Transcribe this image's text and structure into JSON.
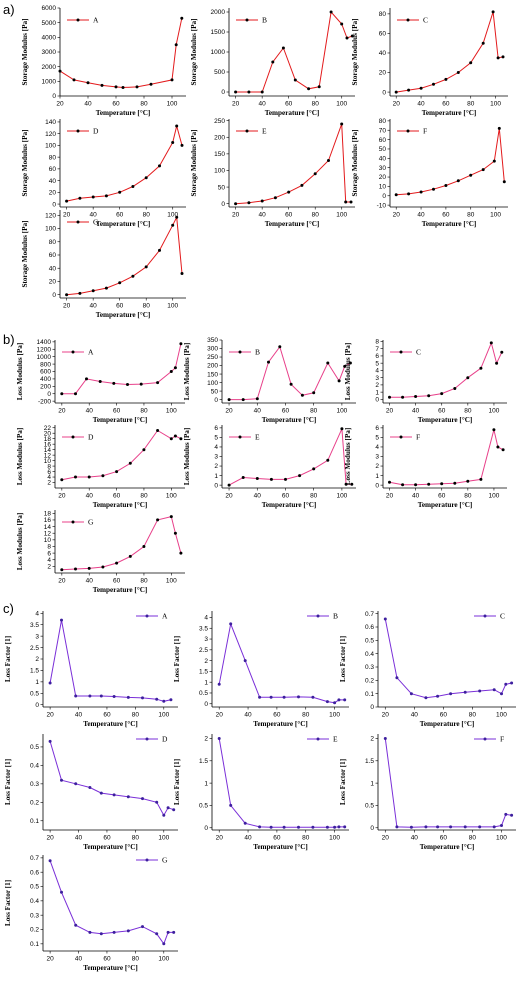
{
  "sections": [
    {
      "label": "a)",
      "ylabel": "Storage Modulus [Pa]",
      "xlabel": "Temperature [°C]"
    },
    {
      "label": "b)",
      "ylabel": "Loss Modulus [Pa]",
      "xlabel": "Temperature [°C]"
    },
    {
      "label": "c)",
      "ylabel": "Loss Factor [1]",
      "xlabel": "Temperature [°C]"
    }
  ],
  "colors": {
    "a": "#e31a1c",
    "b": "#e8408a",
    "c": "#7a2fd8",
    "marker": "#000000",
    "marker_c": "#3d1f9e"
  },
  "chart_data": [
    {
      "type": "line",
      "section": "a",
      "series": [
        {
          "name": "A"
        }
      ],
      "xlim": [
        20,
        110
      ],
      "ylim": [
        0,
        6000
      ],
      "yticks": [
        0,
        1000,
        2000,
        3000,
        4000,
        5000,
        6000
      ],
      "xticks": [
        20,
        40,
        60,
        80,
        100
      ],
      "x": [
        20,
        30,
        40,
        50,
        60,
        65,
        75,
        85,
        100,
        103,
        107
      ],
      "values": [
        1700,
        1100,
        900,
        720,
        620,
        580,
        620,
        800,
        1100,
        3500,
        5300
      ]
    },
    {
      "type": "line",
      "section": "a",
      "series": [
        {
          "name": "B"
        }
      ],
      "xlim": [
        15,
        110
      ],
      "ylim": [
        -100,
        2100
      ],
      "yticks": [
        0,
        500,
        1000,
        1500,
        2000
      ],
      "xticks": [
        20,
        40,
        60,
        80,
        100
      ],
      "x": [
        20,
        30,
        40,
        48,
        56,
        65,
        75,
        83,
        92,
        100,
        104,
        108
      ],
      "values": [
        0,
        0,
        0,
        750,
        1100,
        300,
        80,
        130,
        2000,
        1700,
        1350,
        1400
      ]
    },
    {
      "type": "line",
      "section": "a",
      "series": [
        {
          "name": "C"
        }
      ],
      "xlim": [
        15,
        110
      ],
      "ylim": [
        -4,
        86
      ],
      "yticks": [
        0,
        20,
        40,
        60,
        80
      ],
      "xticks": [
        20,
        40,
        60,
        80,
        100
      ],
      "x": [
        20,
        30,
        40,
        50,
        60,
        70,
        80,
        90,
        98,
        102,
        106
      ],
      "values": [
        0,
        2,
        4,
        8,
        13,
        20,
        30,
        50,
        82,
        35,
        36
      ]
    },
    {
      "type": "line",
      "section": "a",
      "series": [
        {
          "name": "D"
        }
      ],
      "xlim": [
        15,
        110
      ],
      "ylim": [
        -5,
        145
      ],
      "yticks": [
        0,
        20,
        40,
        60,
        80,
        100,
        120,
        140
      ],
      "xticks": [
        20,
        40,
        60,
        80,
        100
      ],
      "x": [
        20,
        30,
        40,
        50,
        60,
        70,
        80,
        90,
        100,
        103,
        107
      ],
      "values": [
        5,
        10,
        12,
        14,
        20,
        30,
        45,
        65,
        105,
        133,
        100
      ]
    },
    {
      "type": "line",
      "section": "a",
      "series": [
        {
          "name": "E"
        }
      ],
      "xlim": [
        15,
        110
      ],
      "ylim": [
        -10,
        255
      ],
      "yticks": [
        0,
        50,
        100,
        150,
        200,
        250
      ],
      "xticks": [
        20,
        40,
        60,
        80,
        100
      ],
      "x": [
        20,
        30,
        40,
        50,
        60,
        70,
        80,
        90,
        100,
        103,
        107
      ],
      "values": [
        0,
        3,
        8,
        18,
        35,
        55,
        90,
        130,
        240,
        5,
        5
      ]
    },
    {
      "type": "line",
      "section": "a",
      "series": [
        {
          "name": "F"
        }
      ],
      "xlim": [
        15,
        110
      ],
      "ylim": [
        -12,
        82
      ],
      "yticks": [
        -10,
        0,
        10,
        20,
        30,
        40,
        50,
        60,
        70,
        80
      ],
      "xticks": [
        20,
        40,
        60,
        80,
        100
      ],
      "x": [
        20,
        30,
        40,
        50,
        60,
        70,
        80,
        90,
        99,
        103,
        107
      ],
      "values": [
        1,
        2,
        4,
        7,
        11,
        16,
        22,
        28,
        37,
        72,
        15
      ]
    },
    {
      "type": "line",
      "section": "a",
      "series": [
        {
          "name": "G"
        }
      ],
      "xlim": [
        15,
        110
      ],
      "ylim": [
        -5,
        128
      ],
      "yticks": [
        0,
        20,
        40,
        60,
        80,
        100,
        120
      ],
      "xticks": [
        20,
        40,
        60,
        80,
        100
      ],
      "x": [
        20,
        30,
        40,
        50,
        60,
        70,
        80,
        90,
        100,
        103,
        107
      ],
      "values": [
        0,
        2,
        6,
        10,
        18,
        28,
        42,
        67,
        105,
        117,
        32
      ]
    },
    {
      "type": "line",
      "section": "b",
      "series": [
        {
          "name": "A"
        }
      ],
      "xlim": [
        15,
        110
      ],
      "ylim": [
        -250,
        1450
      ],
      "yticks": [
        -200,
        0,
        200,
        400,
        600,
        800,
        1000,
        1200,
        1400
      ],
      "xticks": [
        20,
        40,
        60,
        80,
        100
      ],
      "x": [
        20,
        30,
        38,
        48,
        58,
        68,
        78,
        90,
        100,
        103,
        107
      ],
      "values": [
        0,
        0,
        400,
        330,
        280,
        250,
        260,
        300,
        600,
        700,
        1350
      ]
    },
    {
      "type": "line",
      "section": "b",
      "series": [
        {
          "name": "B"
        }
      ],
      "xlim": [
        15,
        110
      ],
      "ylim": [
        -20,
        350
      ],
      "yticks": [
        0,
        50,
        100,
        150,
        200,
        250,
        300,
        350
      ],
      "xticks": [
        20,
        40,
        60,
        80,
        100
      ],
      "x": [
        20,
        30,
        40,
        48,
        56,
        64,
        72,
        80,
        90,
        98,
        102,
        106
      ],
      "values": [
        0,
        0,
        5,
        220,
        310,
        90,
        25,
        40,
        215,
        110,
        195,
        215
      ]
    },
    {
      "type": "line",
      "section": "b",
      "series": [
        {
          "name": "C"
        }
      ],
      "xlim": [
        15,
        110
      ],
      "ylim": [
        -0.5,
        8.2
      ],
      "yticks": [
        0,
        1,
        2,
        3,
        4,
        5,
        6,
        7,
        8
      ],
      "xticks": [
        20,
        40,
        60,
        80,
        100
      ],
      "x": [
        20,
        30,
        40,
        50,
        60,
        70,
        80,
        90,
        98,
        102,
        106
      ],
      "values": [
        0.3,
        0.3,
        0.4,
        0.5,
        0.8,
        1.5,
        3,
        4.3,
        7.8,
        5,
        6.5
      ]
    },
    {
      "type": "line",
      "section": "b",
      "series": [
        {
          "name": "D"
        }
      ],
      "xlim": [
        15,
        110
      ],
      "ylim": [
        0,
        23
      ],
      "yticks": [
        2,
        4,
        6,
        8,
        10,
        12,
        14,
        16,
        18,
        20,
        22
      ],
      "xticks": [
        20,
        40,
        60,
        80,
        100
      ],
      "x": [
        20,
        30,
        40,
        50,
        60,
        70,
        80,
        90,
        100,
        103,
        107
      ],
      "values": [
        3,
        4,
        4,
        4.5,
        6,
        9,
        14,
        21,
        18,
        19,
        18
      ]
    },
    {
      "type": "line",
      "section": "b",
      "series": [
        {
          "name": "E"
        }
      ],
      "xlim": [
        15,
        110
      ],
      "ylim": [
        -0.3,
        6.3
      ],
      "yticks": [
        0,
        1,
        2,
        3,
        4,
        5,
        6
      ],
      "xticks": [
        20,
        40,
        60,
        80,
        100
      ],
      "x": [
        20,
        30,
        40,
        50,
        60,
        70,
        80,
        90,
        100,
        103,
        107
      ],
      "values": [
        0,
        0.8,
        0.7,
        0.6,
        0.6,
        1,
        1.7,
        2.6,
        5.9,
        0.1,
        0.1
      ]
    },
    {
      "type": "line",
      "section": "b",
      "series": [
        {
          "name": "F"
        }
      ],
      "xlim": [
        15,
        110
      ],
      "ylim": [
        -0.3,
        6.3
      ],
      "yticks": [
        0,
        1,
        2,
        3,
        4,
        5,
        6
      ],
      "xticks": [
        20,
        40,
        60,
        80,
        100
      ],
      "x": [
        20,
        30,
        40,
        50,
        60,
        70,
        80,
        90,
        100,
        103,
        107
      ],
      "values": [
        0.3,
        0.05,
        0.05,
        0.1,
        0.15,
        0.2,
        0.4,
        0.6,
        5.8,
        4,
        3.7
      ]
    },
    {
      "type": "line",
      "section": "b",
      "series": [
        {
          "name": "G"
        }
      ],
      "xlim": [
        15,
        110
      ],
      "ylim": [
        0,
        19
      ],
      "yticks": [
        2,
        4,
        6,
        8,
        10,
        12,
        14,
        16,
        18
      ],
      "xticks": [
        20,
        40,
        60,
        80,
        100
      ],
      "x": [
        20,
        30,
        40,
        50,
        60,
        70,
        80,
        90,
        100,
        103,
        107
      ],
      "values": [
        1,
        1.2,
        1.4,
        1.8,
        3,
        5,
        8,
        16,
        17,
        12,
        6
      ]
    },
    {
      "type": "line",
      "section": "c",
      "series": [
        {
          "name": "A"
        }
      ],
      "xlim": [
        15,
        110
      ],
      "ylim": [
        -0.1,
        4.1
      ],
      "yticks": [
        0,
        0.5,
        1,
        1.5,
        2,
        2.5,
        3,
        3.5,
        4
      ],
      "xticks": [
        20,
        40,
        60,
        80,
        100
      ],
      "x": [
        20,
        28,
        38,
        48,
        56,
        65,
        75,
        85,
        95,
        100,
        105
      ],
      "values": [
        0.95,
        3.7,
        0.38,
        0.38,
        0.38,
        0.36,
        0.32,
        0.3,
        0.24,
        0.15,
        0.22
      ]
    },
    {
      "type": "line",
      "section": "c",
      "series": [
        {
          "name": "B"
        }
      ],
      "xlim": [
        15,
        110
      ],
      "ylim": [
        -0.15,
        4.3
      ],
      "yticks": [
        0,
        0.5,
        1,
        1.5,
        2,
        2.5,
        3,
        3.5,
        4
      ],
      "xticks": [
        20,
        40,
        60,
        80,
        100
      ],
      "x": [
        20,
        28,
        38,
        48,
        56,
        65,
        75,
        85,
        95,
        100,
        103,
        107
      ],
      "values": [
        0.9,
        3.7,
        2,
        0.3,
        0.3,
        0.3,
        0.32,
        0.3,
        0.1,
        0.05,
        0.18,
        0.18
      ]
    },
    {
      "type": "line",
      "section": "c",
      "series": [
        {
          "name": "C"
        }
      ],
      "xlim": [
        15,
        110
      ],
      "ylim": [
        0,
        0.72
      ],
      "yticks": [
        0,
        0.1,
        0.2,
        0.3,
        0.4,
        0.5,
        0.6,
        0.7
      ],
      "xticks": [
        20,
        40,
        60,
        80,
        100
      ],
      "x": [
        20,
        28,
        38,
        48,
        56,
        65,
        75,
        85,
        95,
        100,
        103,
        107
      ],
      "values": [
        0.66,
        0.22,
        0.1,
        0.07,
        0.08,
        0.1,
        0.11,
        0.12,
        0.13,
        0.1,
        0.17,
        0.18
      ]
    },
    {
      "type": "line",
      "section": "c",
      "series": [
        {
          "name": "D"
        }
      ],
      "xlim": [
        15,
        110
      ],
      "ylim": [
        0.05,
        0.57
      ],
      "yticks": [
        0.1,
        0.2,
        0.3,
        0.4,
        0.5
      ],
      "xticks": [
        20,
        40,
        60,
        80,
        100
      ],
      "x": [
        20,
        28,
        38,
        48,
        56,
        65,
        75,
        85,
        95,
        100,
        103,
        107
      ],
      "values": [
        0.53,
        0.32,
        0.3,
        0.28,
        0.25,
        0.24,
        0.23,
        0.22,
        0.2,
        0.13,
        0.17,
        0.16
      ]
    },
    {
      "type": "line",
      "section": "c",
      "series": [
        {
          "name": "E"
        }
      ],
      "xlim": [
        15,
        110
      ],
      "ylim": [
        -0.05,
        2.1
      ],
      "yticks": [
        0,
        0.5,
        1,
        1.5,
        2
      ],
      "xticks": [
        20,
        40,
        60,
        80,
        100
      ],
      "x": [
        20,
        28,
        38,
        48,
        56,
        65,
        75,
        85,
        95,
        100,
        103,
        107
      ],
      "values": [
        2,
        0.5,
        0.1,
        0.02,
        0.01,
        0.01,
        0.01,
        0.01,
        0.01,
        0.01,
        0.02,
        0.02
      ]
    },
    {
      "type": "line",
      "section": "c",
      "series": [
        {
          "name": "F"
        }
      ],
      "xlim": [
        15,
        110
      ],
      "ylim": [
        -0.05,
        2.1
      ],
      "yticks": [
        0,
        0.5,
        1,
        1.5,
        2
      ],
      "xticks": [
        20,
        40,
        60,
        80,
        100
      ],
      "x": [
        20,
        28,
        38,
        48,
        56,
        65,
        75,
        85,
        95,
        100,
        103,
        107
      ],
      "values": [
        2,
        0.02,
        0.01,
        0.02,
        0.02,
        0.02,
        0.02,
        0.02,
        0.02,
        0.05,
        0.3,
        0.28
      ]
    },
    {
      "type": "line",
      "section": "c",
      "series": [
        {
          "name": "G"
        }
      ],
      "xlim": [
        15,
        110
      ],
      "ylim": [
        0.05,
        0.72
      ],
      "yticks": [
        0.1,
        0.2,
        0.3,
        0.4,
        0.5,
        0.6,
        0.7
      ],
      "xticks": [
        20,
        40,
        60,
        80,
        100
      ],
      "x": [
        20,
        28,
        38,
        48,
        56,
        65,
        75,
        85,
        95,
        100,
        103,
        107
      ],
      "values": [
        0.68,
        0.46,
        0.23,
        0.18,
        0.17,
        0.18,
        0.19,
        0.22,
        0.17,
        0.1,
        0.18,
        0.18
      ]
    }
  ]
}
